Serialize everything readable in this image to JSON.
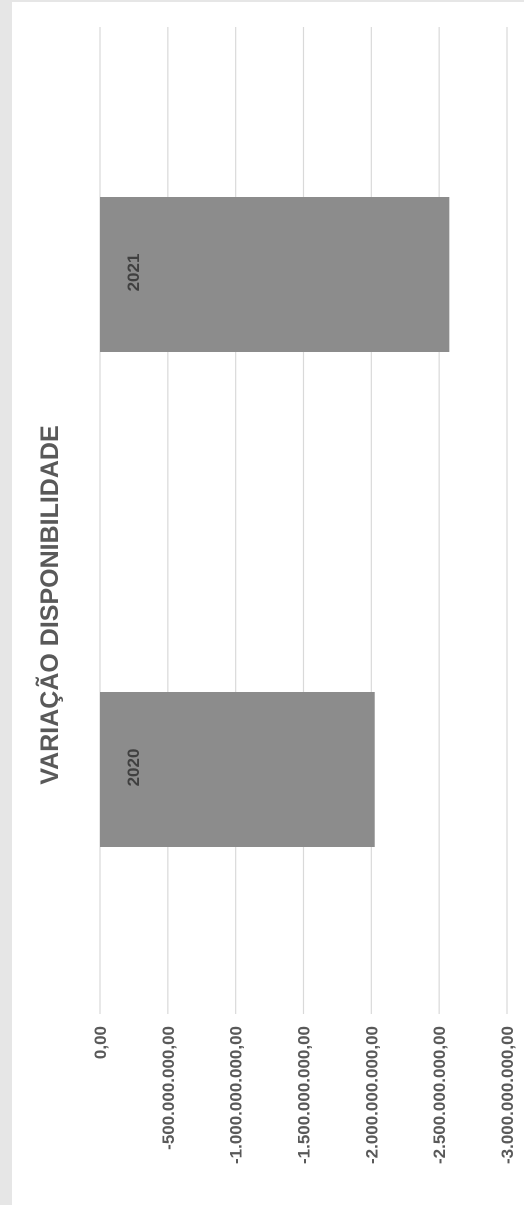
{
  "chart_data": {
    "type": "bar",
    "orientation": "rotated-90",
    "title": "VARIAÇÃO DISPONIBILIDADE",
    "categories": [
      "2020",
      "2021"
    ],
    "values": [
      -2025000000,
      -2575000000
    ],
    "ylim": [
      -3000000000,
      0
    ],
    "ticks": [
      {
        "value": 0,
        "label": "0,00"
      },
      {
        "value": -500000000,
        "label": "-500.000.000,00"
      },
      {
        "value": -1000000000,
        "label": "-1.000.000.000,00"
      },
      {
        "value": -1500000000,
        "label": "-1.500.000.000,00"
      },
      {
        "value": -2000000000,
        "label": "-2.000.000.000,00"
      },
      {
        "value": -2500000000,
        "label": "-2.500.000.000,00"
      },
      {
        "value": -3000000000,
        "label": "-3.000.000.000,00"
      }
    ],
    "grid": true,
    "legend": "none",
    "bar_color": "#8c8c8c",
    "grid_color": "#d9d9d9"
  }
}
